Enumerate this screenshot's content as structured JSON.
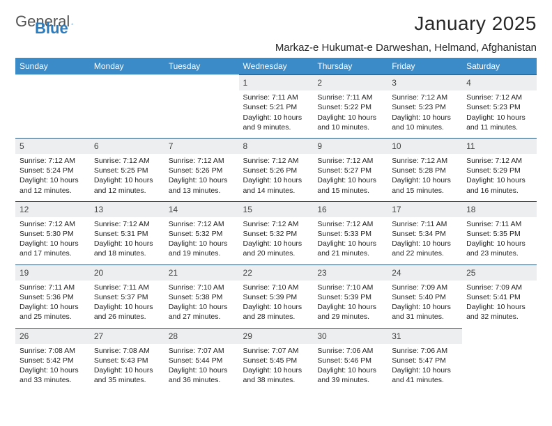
{
  "brand": {
    "part1": "General",
    "part2": "Blue"
  },
  "title": "January 2025",
  "location": "Markaz-e Hukumat-e Darweshan, Helmand, Afghanistan",
  "colors": {
    "header_bg": "#3b8bc9",
    "header_text": "#ffffff",
    "daynum_bg": "#eceeef",
    "row_divider": "#23527a",
    "brand_gray": "#555555",
    "brand_blue": "#2b7bbf",
    "body_text": "#222222",
    "background": "#ffffff"
  },
  "typography": {
    "title_fontsize": 28,
    "location_fontsize": 15,
    "th_fontsize": 12,
    "daynum_fontsize": 12,
    "cell_fontsize": 10.5
  },
  "dayHeaders": [
    "Sunday",
    "Monday",
    "Tuesday",
    "Wednesday",
    "Thursday",
    "Friday",
    "Saturday"
  ],
  "weeks": [
    [
      {
        "empty": true
      },
      {
        "empty": true
      },
      {
        "empty": true
      },
      {
        "num": "1",
        "sunrise": "7:11 AM",
        "sunset": "5:21 PM",
        "daylight": "10 hours and 9 minutes."
      },
      {
        "num": "2",
        "sunrise": "7:11 AM",
        "sunset": "5:22 PM",
        "daylight": "10 hours and 10 minutes."
      },
      {
        "num": "3",
        "sunrise": "7:12 AM",
        "sunset": "5:23 PM",
        "daylight": "10 hours and 10 minutes."
      },
      {
        "num": "4",
        "sunrise": "7:12 AM",
        "sunset": "5:23 PM",
        "daylight": "10 hours and 11 minutes."
      }
    ],
    [
      {
        "num": "5",
        "sunrise": "7:12 AM",
        "sunset": "5:24 PM",
        "daylight": "10 hours and 12 minutes."
      },
      {
        "num": "6",
        "sunrise": "7:12 AM",
        "sunset": "5:25 PM",
        "daylight": "10 hours and 12 minutes."
      },
      {
        "num": "7",
        "sunrise": "7:12 AM",
        "sunset": "5:26 PM",
        "daylight": "10 hours and 13 minutes."
      },
      {
        "num": "8",
        "sunrise": "7:12 AM",
        "sunset": "5:26 PM",
        "daylight": "10 hours and 14 minutes."
      },
      {
        "num": "9",
        "sunrise": "7:12 AM",
        "sunset": "5:27 PM",
        "daylight": "10 hours and 15 minutes."
      },
      {
        "num": "10",
        "sunrise": "7:12 AM",
        "sunset": "5:28 PM",
        "daylight": "10 hours and 15 minutes."
      },
      {
        "num": "11",
        "sunrise": "7:12 AM",
        "sunset": "5:29 PM",
        "daylight": "10 hours and 16 minutes."
      }
    ],
    [
      {
        "num": "12",
        "sunrise": "7:12 AM",
        "sunset": "5:30 PM",
        "daylight": "10 hours and 17 minutes."
      },
      {
        "num": "13",
        "sunrise": "7:12 AM",
        "sunset": "5:31 PM",
        "daylight": "10 hours and 18 minutes."
      },
      {
        "num": "14",
        "sunrise": "7:12 AM",
        "sunset": "5:32 PM",
        "daylight": "10 hours and 19 minutes."
      },
      {
        "num": "15",
        "sunrise": "7:12 AM",
        "sunset": "5:32 PM",
        "daylight": "10 hours and 20 minutes."
      },
      {
        "num": "16",
        "sunrise": "7:12 AM",
        "sunset": "5:33 PM",
        "daylight": "10 hours and 21 minutes."
      },
      {
        "num": "17",
        "sunrise": "7:11 AM",
        "sunset": "5:34 PM",
        "daylight": "10 hours and 22 minutes."
      },
      {
        "num": "18",
        "sunrise": "7:11 AM",
        "sunset": "5:35 PM",
        "daylight": "10 hours and 23 minutes."
      }
    ],
    [
      {
        "num": "19",
        "sunrise": "7:11 AM",
        "sunset": "5:36 PM",
        "daylight": "10 hours and 25 minutes."
      },
      {
        "num": "20",
        "sunrise": "7:11 AM",
        "sunset": "5:37 PM",
        "daylight": "10 hours and 26 minutes."
      },
      {
        "num": "21",
        "sunrise": "7:10 AM",
        "sunset": "5:38 PM",
        "daylight": "10 hours and 27 minutes."
      },
      {
        "num": "22",
        "sunrise": "7:10 AM",
        "sunset": "5:39 PM",
        "daylight": "10 hours and 28 minutes."
      },
      {
        "num": "23",
        "sunrise": "7:10 AM",
        "sunset": "5:39 PM",
        "daylight": "10 hours and 29 minutes."
      },
      {
        "num": "24",
        "sunrise": "7:09 AM",
        "sunset": "5:40 PM",
        "daylight": "10 hours and 31 minutes."
      },
      {
        "num": "25",
        "sunrise": "7:09 AM",
        "sunset": "5:41 PM",
        "daylight": "10 hours and 32 minutes."
      }
    ],
    [
      {
        "num": "26",
        "sunrise": "7:08 AM",
        "sunset": "5:42 PM",
        "daylight": "10 hours and 33 minutes."
      },
      {
        "num": "27",
        "sunrise": "7:08 AM",
        "sunset": "5:43 PM",
        "daylight": "10 hours and 35 minutes."
      },
      {
        "num": "28",
        "sunrise": "7:07 AM",
        "sunset": "5:44 PM",
        "daylight": "10 hours and 36 minutes."
      },
      {
        "num": "29",
        "sunrise": "7:07 AM",
        "sunset": "5:45 PM",
        "daylight": "10 hours and 38 minutes."
      },
      {
        "num": "30",
        "sunrise": "7:06 AM",
        "sunset": "5:46 PM",
        "daylight": "10 hours and 39 minutes."
      },
      {
        "num": "31",
        "sunrise": "7:06 AM",
        "sunset": "5:47 PM",
        "daylight": "10 hours and 41 minutes."
      },
      {
        "empty": true
      }
    ]
  ],
  "labels": {
    "sunrise": "Sunrise: ",
    "sunset": "Sunset: ",
    "daylight": "Daylight: "
  }
}
